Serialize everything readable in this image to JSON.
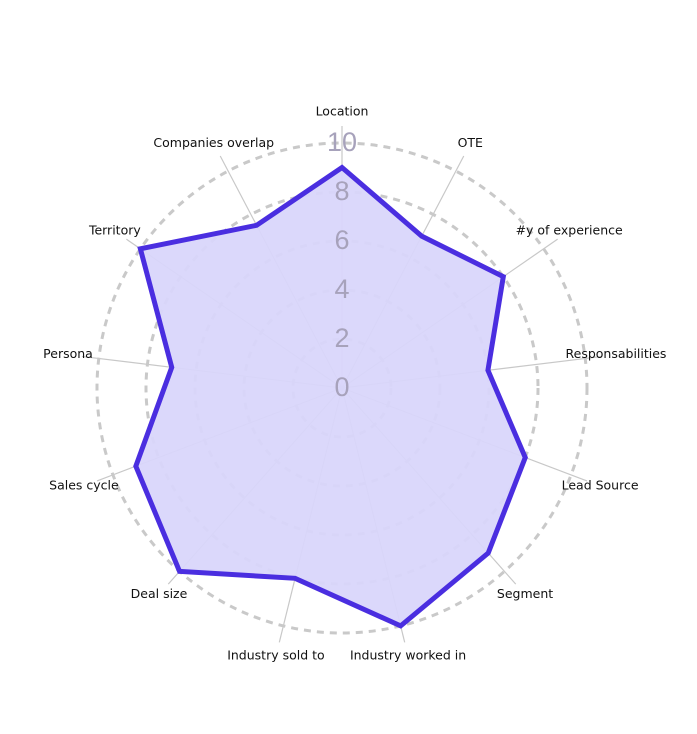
{
  "chart_data": {
    "type": "radar",
    "categories": [
      "Location",
      "OTE",
      "#y of experience",
      "Responsabilities",
      "Lead Source",
      "Segment",
      "Industry worked in",
      "Industry sold to",
      "Deal size",
      "Sales cycle",
      "Persona",
      "Territory",
      "Companies overlap"
    ],
    "values": [
      9,
      7,
      8,
      6,
      8,
      9,
      10,
      8,
      10,
      9,
      7,
      10,
      7.5
    ],
    "color": "#4a2ee0",
    "fill": "#d9d6fb",
    "rlim": [
      0,
      10
    ],
    "rticks": [
      0,
      2,
      4,
      6,
      8,
      10
    ],
    "grid": true
  }
}
